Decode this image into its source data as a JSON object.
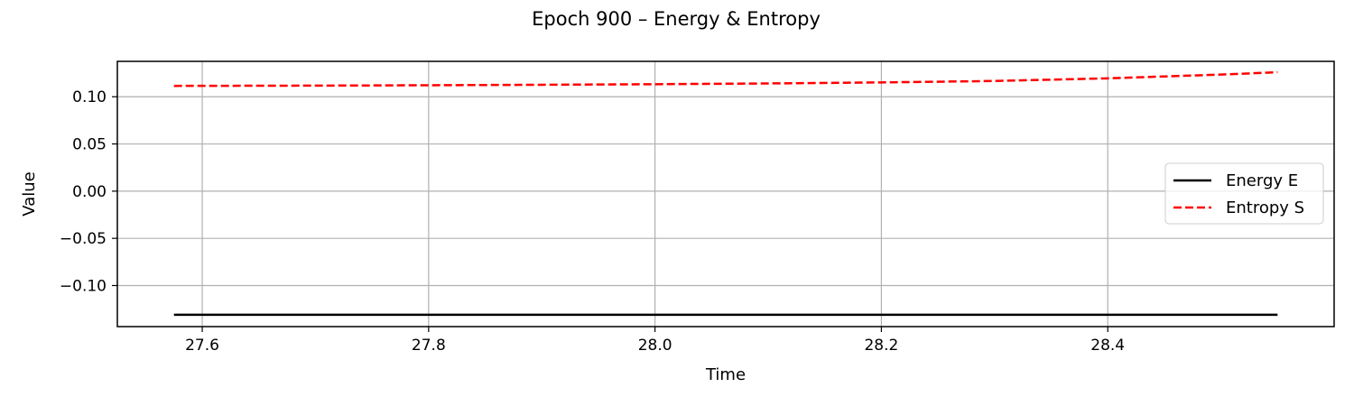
{
  "chart_data": {
    "type": "line",
    "title": "Epoch 900 – Energy & Entropy",
    "xlabel": "Time",
    "ylabel": "Value",
    "xlim": [
      27.525,
      28.6
    ],
    "ylim": [
      -0.1435,
      0.1375
    ],
    "x_ticks": [
      27.6,
      27.8,
      28.0,
      28.2,
      28.4
    ],
    "x_tick_labels": [
      "27.6",
      "27.8",
      "28.0",
      "28.2",
      "28.4"
    ],
    "y_ticks": [
      0.1,
      0.05,
      0.0,
      -0.05,
      -0.1
    ],
    "y_tick_labels": [
      "0.10",
      "0.05",
      "0.00",
      "−0.05",
      "−0.10"
    ],
    "grid": true,
    "legend_position": "center-right",
    "series": [
      {
        "name": "Energy E",
        "color": "#000000",
        "style": "solid",
        "x": [
          27.575,
          27.7,
          27.8,
          27.9,
          28.0,
          28.1,
          28.2,
          28.3,
          28.4,
          28.5,
          28.55
        ],
        "y": [
          -0.131,
          -0.131,
          -0.131,
          -0.131,
          -0.131,
          -0.131,
          -0.131,
          -0.131,
          -0.131,
          -0.131,
          -0.131
        ]
      },
      {
        "name": "Entropy S",
        "color": "#ff0000",
        "style": "dashed",
        "x": [
          27.575,
          27.7,
          27.8,
          27.9,
          28.0,
          28.1,
          28.2,
          28.3,
          28.4,
          28.5,
          28.55
        ],
        "y": [
          0.1115,
          0.1118,
          0.1122,
          0.1127,
          0.1133,
          0.1141,
          0.1152,
          0.1167,
          0.1195,
          0.1235,
          0.126
        ]
      }
    ]
  }
}
